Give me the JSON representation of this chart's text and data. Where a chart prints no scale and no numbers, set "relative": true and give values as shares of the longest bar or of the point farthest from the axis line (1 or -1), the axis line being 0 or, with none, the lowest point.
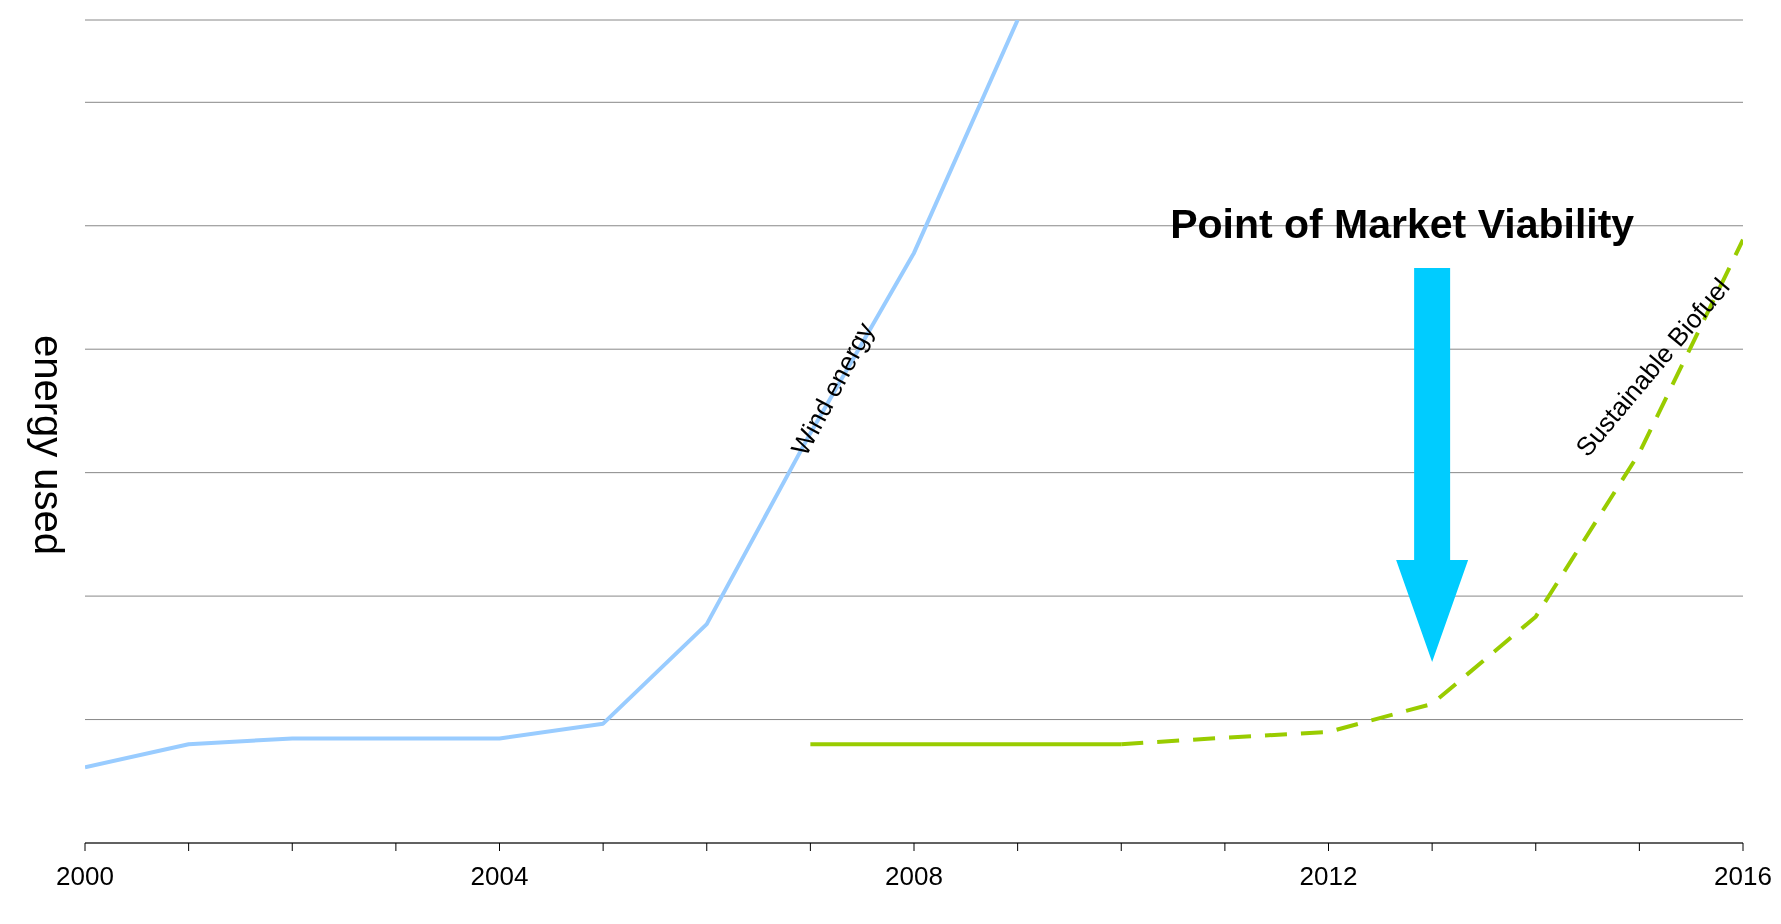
{
  "chart_data": {
    "type": "line",
    "ylabel": "energy used",
    "relative": true,
    "xlim": [
      2000,
      2016
    ],
    "xticks": [
      2000,
      {
        "value": 2001,
        "label": null
      },
      {
        "value": 2002,
        "label": null
      },
      {
        "value": 2003,
        "label": null
      },
      2004,
      {
        "value": 2005,
        "label": null
      },
      {
        "value": 2006,
        "label": null
      },
      {
        "value": 2007,
        "label": null
      },
      2008,
      {
        "value": 2009,
        "label": null
      },
      {
        "value": 2010,
        "label": null
      },
      {
        "value": 2011,
        "label": null
      },
      2012,
      {
        "value": 2013,
        "label": null
      },
      {
        "value": 2014,
        "label": null
      },
      {
        "value": 2015,
        "label": null
      },
      2016
    ],
    "series": [
      {
        "name": "Wind energy",
        "color": "#99ccff",
        "line_style": "solid",
        "x": [
          2000,
          2001,
          2002,
          2003,
          2004,
          2005,
          2006,
          2007,
          2008,
          2009
        ],
        "values": [
          0.092,
          0.12,
          0.127,
          0.127,
          0.127,
          0.145,
          0.266,
          0.498,
          0.717,
          1
        ]
      },
      {
        "color": "#99cc00",
        "line_style": "solid",
        "x": [
          2007,
          2008,
          2009,
          2010
        ],
        "values": [
          0.12,
          0.12,
          0.12,
          0.12
        ]
      },
      {
        "name": "Sustainable Biofuel",
        "color": "#99cc00",
        "line_style": "dashed",
        "x": [
          2010,
          2011,
          2012,
          2013,
          2014,
          2015,
          2016
        ],
        "values": [
          0.12,
          0.128,
          0.135,
          0.169,
          0.275,
          0.474,
          0.733
        ]
      }
    ],
    "annotations": [
      "Point of Market Viability"
    ],
    "grid": "y",
    "legend": false,
    "marker": "none"
  }
}
